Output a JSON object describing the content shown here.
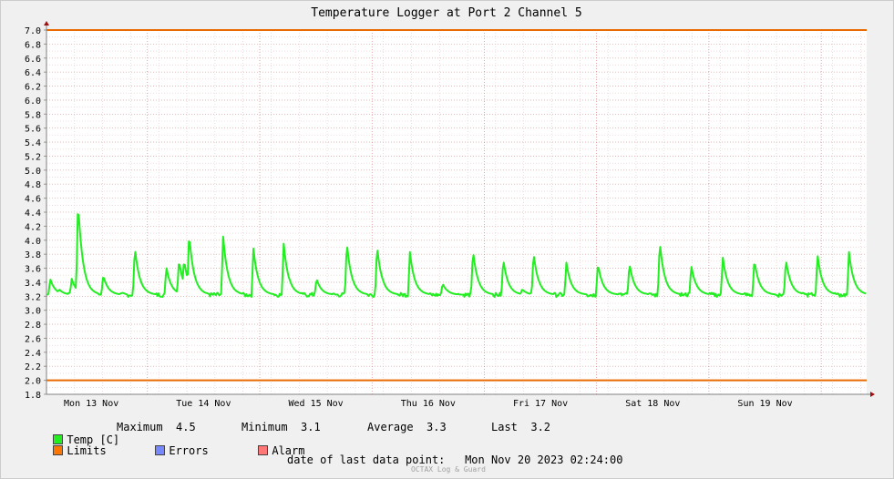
{
  "chart_data": {
    "type": "line",
    "title": "Temperature Logger at Port 2 Channel 5",
    "y_ticks": [
      "7.0",
      "6.8",
      "6.6",
      "6.4",
      "6.2",
      "6.0",
      "5.8",
      "5.6",
      "5.4",
      "5.2",
      "5.0",
      "4.8",
      "4.6",
      "4.4",
      "4.2",
      "4.0",
      "3.8",
      "3.6",
      "3.4",
      "3.2",
      "3.0",
      "2.8",
      "2.6",
      "2.4",
      "2.2",
      "2.0",
      "1.8"
    ],
    "ylim": [
      1.8,
      7.0
    ],
    "x_ticks": [
      "Mon 13 Nov",
      "Tue 14 Nov",
      "Wed 15 Nov",
      "Thu 16 Nov",
      "Fri 17 Nov",
      "Sat 18 Nov",
      "Sun 19 Nov"
    ],
    "grid": true,
    "limits": {
      "upper": 7.0,
      "lower": 2.0,
      "color": "#e86a00"
    },
    "series": [
      {
        "name": "Temp [C]",
        "color": "#22ee22",
        "baseline": 3.22,
        "peaks": [
          [
            0.3,
            3.45
          ],
          [
            1.0,
            3.3
          ],
          [
            2.0,
            3.45
          ],
          [
            2.5,
            4.55
          ],
          [
            3.1,
            3.28
          ],
          [
            4.5,
            3.5
          ],
          [
            7.0,
            3.9
          ],
          [
            9.5,
            3.62
          ],
          [
            10.5,
            3.72
          ],
          [
            10.9,
            3.72
          ],
          [
            11.3,
            4.1
          ],
          [
            14.0,
            4.05
          ],
          [
            16.4,
            3.88
          ],
          [
            18.8,
            3.95
          ],
          [
            21.4,
            3.45
          ],
          [
            23.8,
            3.97
          ],
          [
            26.2,
            3.92
          ],
          [
            28.8,
            3.83
          ],
          [
            31.4,
            3.38
          ],
          [
            33.8,
            3.85
          ],
          [
            36.2,
            3.73
          ],
          [
            37.7,
            3.3
          ],
          [
            38.6,
            3.82
          ],
          [
            41.2,
            3.68
          ],
          [
            43.7,
            3.67
          ],
          [
            46.2,
            3.67
          ],
          [
            48.6,
            3.98
          ],
          [
            51.1,
            3.64
          ],
          [
            53.6,
            3.75
          ],
          [
            56.1,
            3.72
          ],
          [
            58.6,
            3.73
          ],
          [
            61.1,
            3.8
          ],
          [
            63.6,
            3.83
          ]
        ],
        "noise": 0.03
      }
    ],
    "x_range_hours": 65
  },
  "legend": {
    "temp_label": "Temp [C]",
    "limits_label": "Limits",
    "errors_label": "Errors",
    "alarm_label": "Alarm",
    "maximum_label": "Maximum",
    "maximum_value": "4.5",
    "minimum_label": "Minimum",
    "minimum_value": "3.1",
    "average_label": "Average",
    "average_value": "3.3",
    "last_label": "Last",
    "last_value": "3.2",
    "colors": {
      "temp": "#22ee22",
      "limits": "#ff7700",
      "errors": "#7788ff",
      "alarm": "#ff7777"
    }
  },
  "footer": {
    "date_label": "date of last data point:",
    "date_value": "Mon Nov 20 2023 02:24:00",
    "brand": "OCTAX Log & Guard"
  }
}
